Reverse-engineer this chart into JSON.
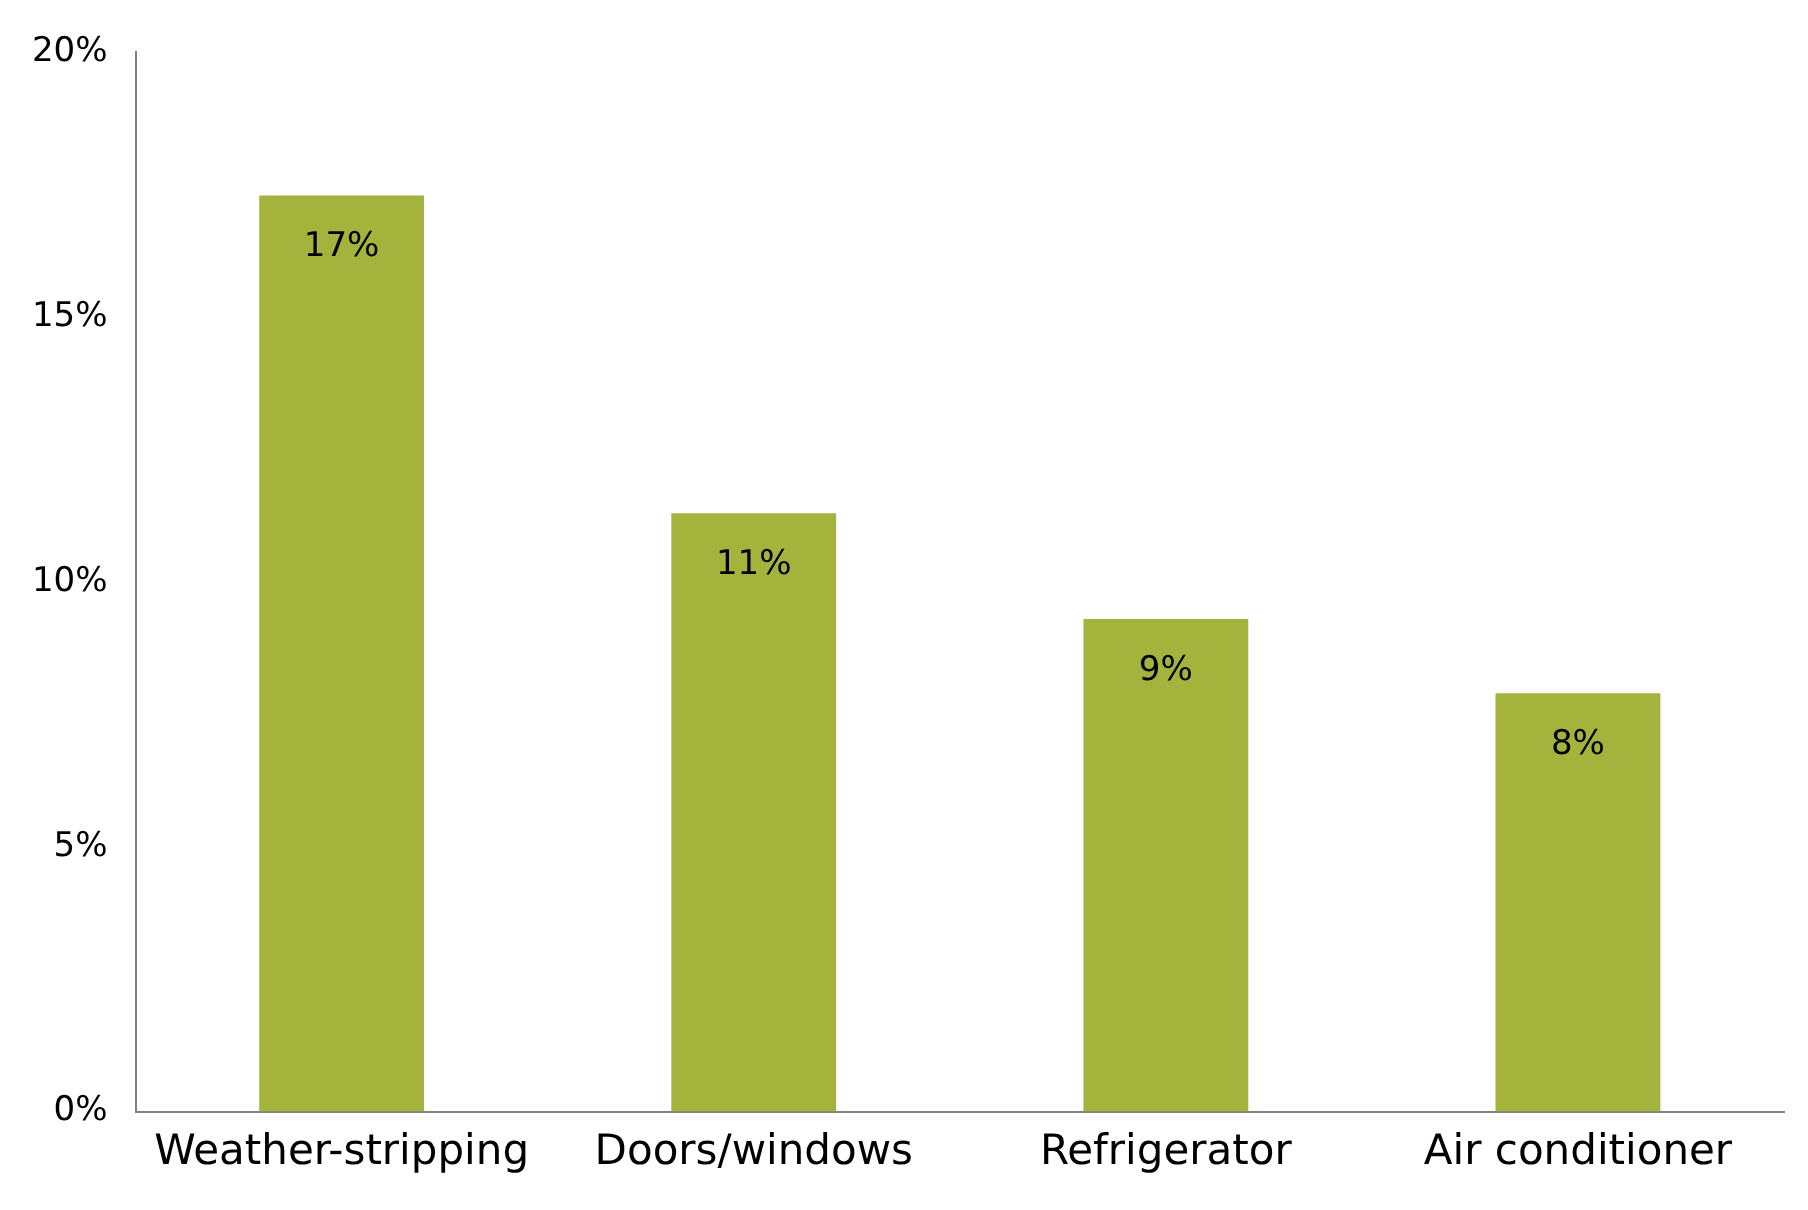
{
  "chart_data": {
    "type": "bar",
    "categories": [
      "Weather-stripping",
      "Doors/windows",
      "Refrigerator",
      "Air conditioner"
    ],
    "values": [
      17.3,
      11.3,
      9.3,
      7.9
    ],
    "value_labels": [
      "17%",
      "11%",
      "9%",
      "8%"
    ],
    "color": "#a3b33c",
    "ylim": [
      0,
      20
    ],
    "yticks": [
      {
        "value": 0,
        "label": "0%"
      },
      {
        "value": 5,
        "label": "5%"
      },
      {
        "value": 10,
        "label": "10%"
      },
      {
        "value": 15,
        "label": "15%"
      },
      {
        "value": 20,
        "label": "20%"
      }
    ],
    "grid": false,
    "legend": false
  }
}
